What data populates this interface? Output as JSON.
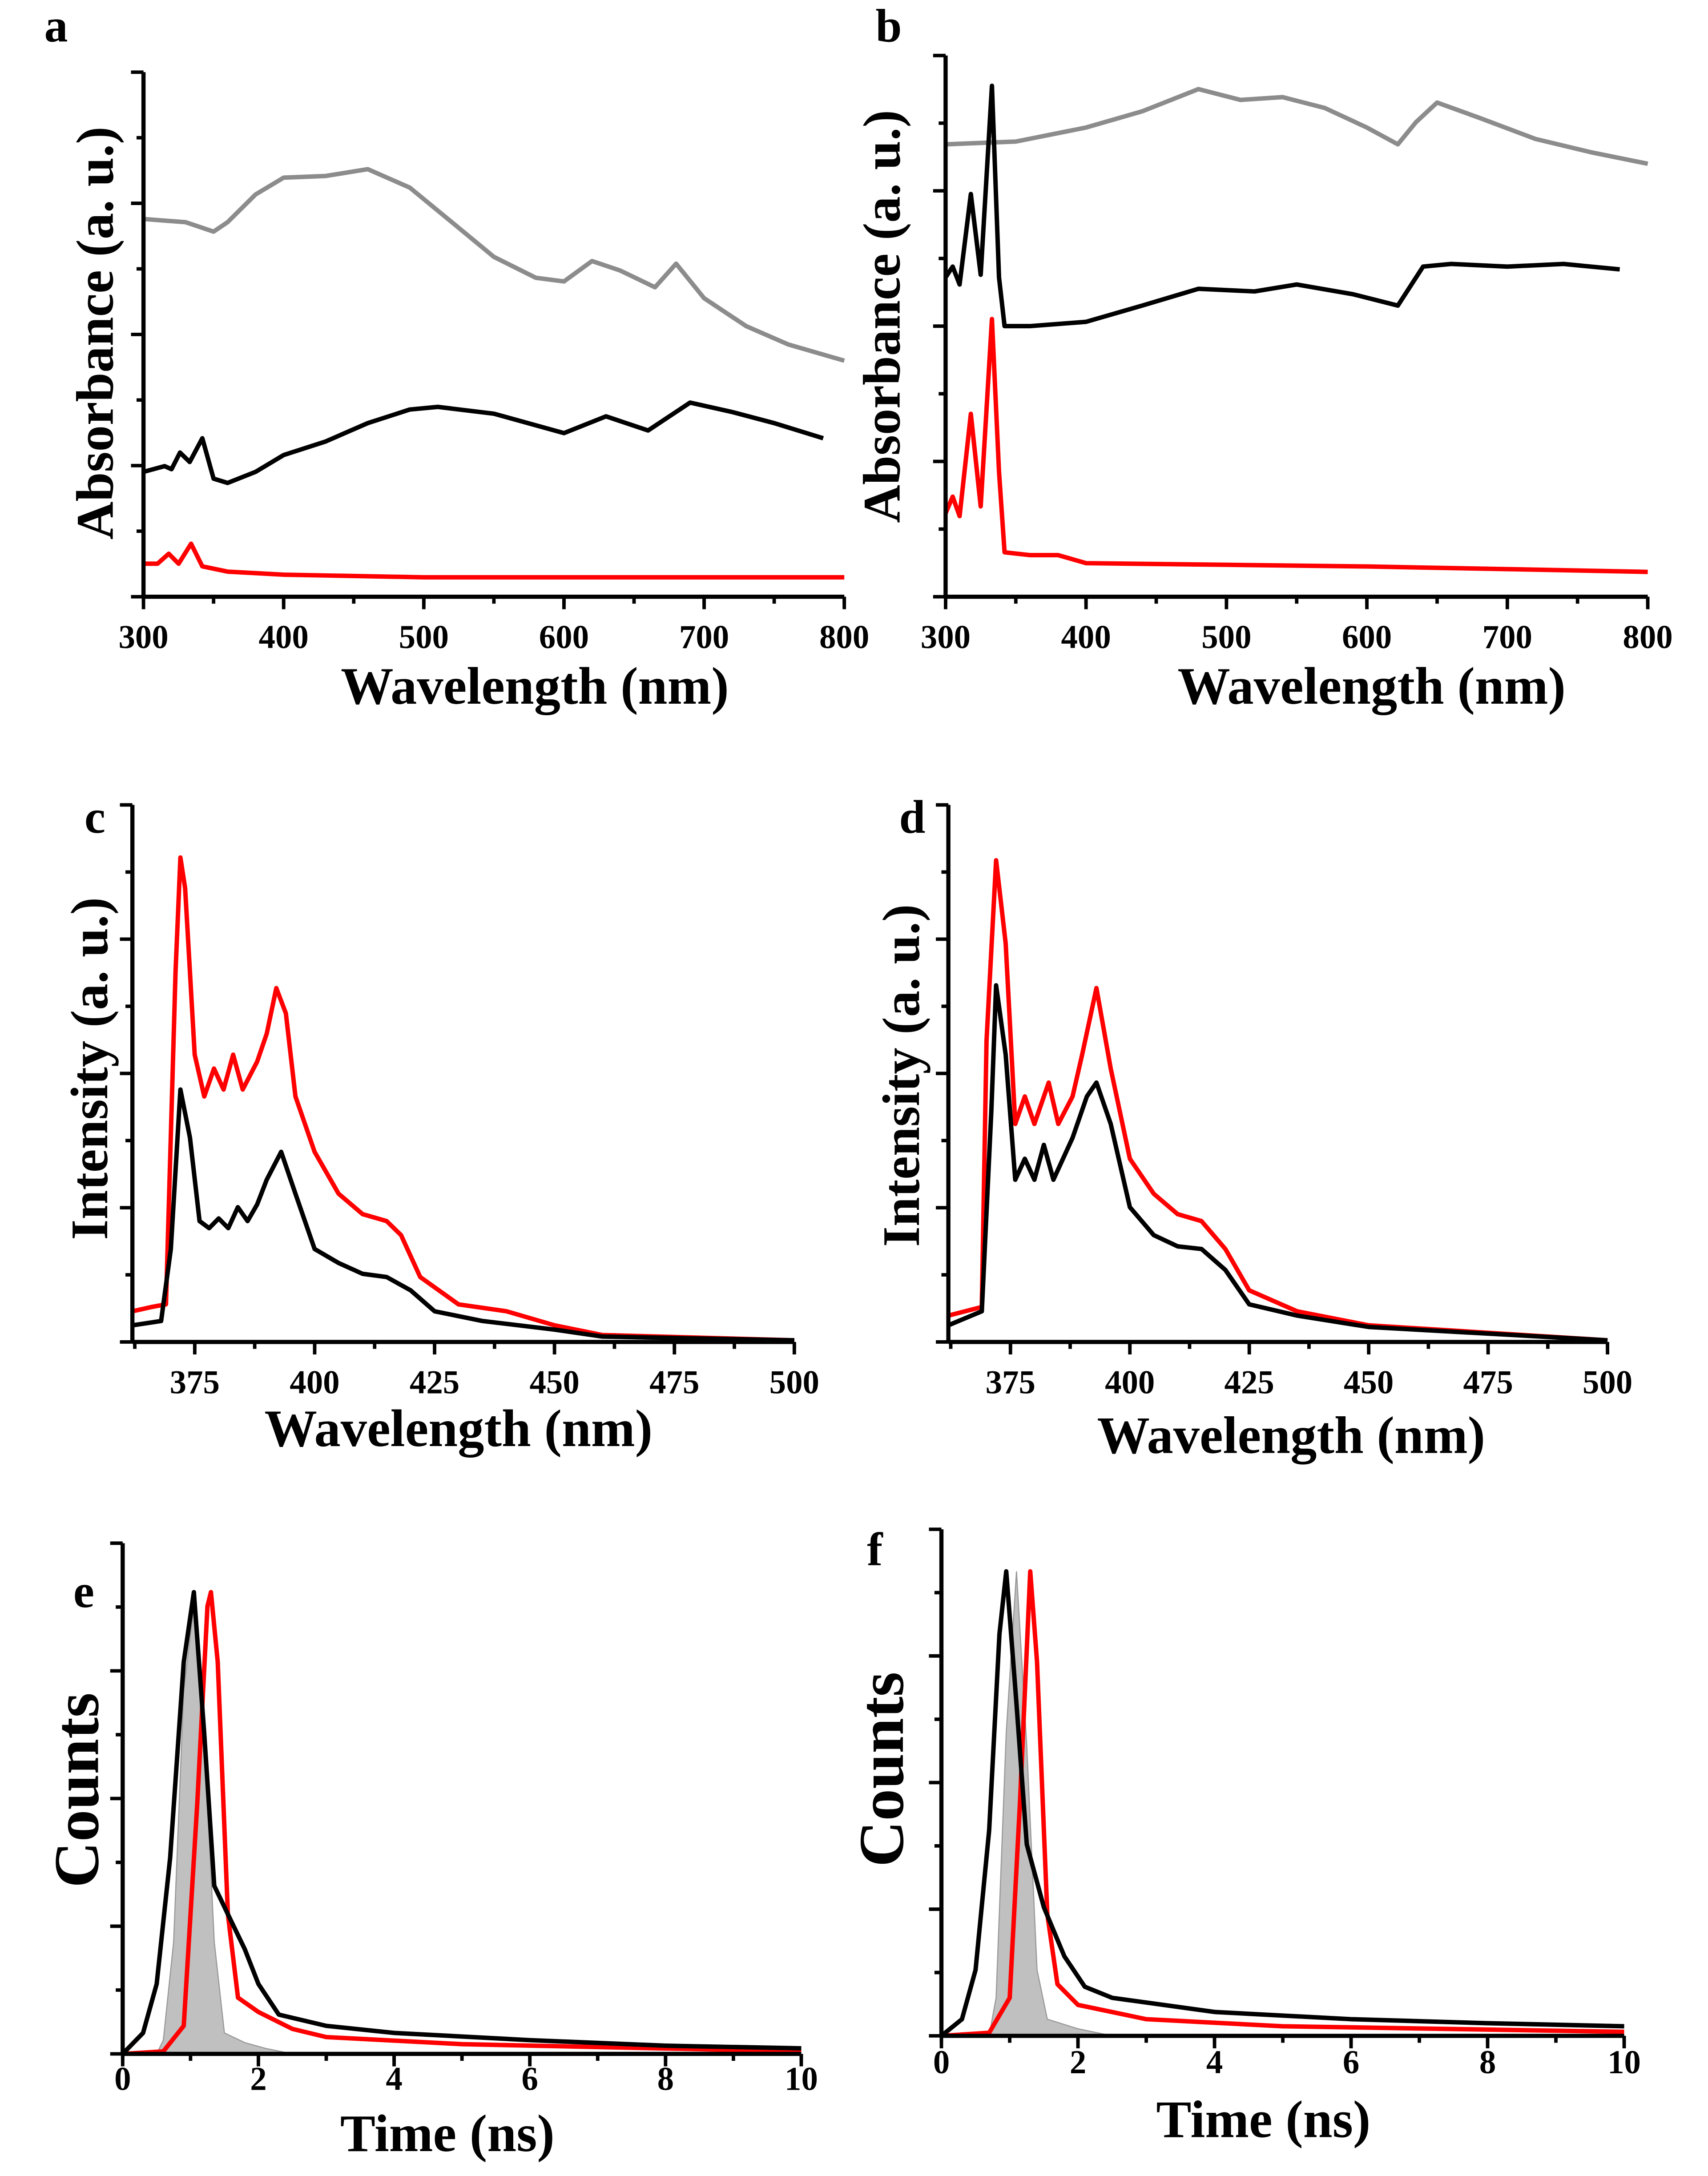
{
  "chart_data": [
    {
      "panel": "a",
      "type": "line",
      "xlabel": "Wavelength (nm)",
      "ylabel": "Absorbance (a. u.)",
      "xlim": [
        300,
        800
      ],
      "ylim": [
        0,
        1
      ],
      "xticks": [
        300,
        400,
        500,
        600,
        700,
        800
      ],
      "xminor": 50,
      "series": [
        {
          "color": "#8c8c8c",
          "x": [
            300,
            330,
            350,
            360,
            380,
            400,
            430,
            460,
            490,
            520,
            550,
            580,
            600,
            620,
            640,
            665,
            680,
            700,
            730,
            760,
            800
          ],
          "y": [
            0.72,
            0.714,
            0.696,
            0.714,
            0.767,
            0.799,
            0.802,
            0.815,
            0.78,
            0.714,
            0.648,
            0.608,
            0.601,
            0.64,
            0.622,
            0.59,
            0.635,
            0.569,
            0.516,
            0.481,
            0.45
          ]
        },
        {
          "color": "#000000",
          "x": [
            300,
            315,
            320,
            326,
            333,
            342,
            350,
            360,
            380,
            400,
            430,
            460,
            490,
            510,
            550,
            600,
            630,
            660,
            690,
            720,
            750,
            785
          ],
          "y": [
            0.238,
            0.249,
            0.243,
            0.275,
            0.257,
            0.302,
            0.225,
            0.217,
            0.238,
            0.27,
            0.296,
            0.331,
            0.357,
            0.362,
            0.349,
            0.312,
            0.344,
            0.317,
            0.37,
            0.352,
            0.331,
            0.302
          ]
        },
        {
          "color": "#ff0000",
          "x": [
            300,
            310,
            318,
            325,
            334,
            342,
            360,
            400,
            500,
            800
          ],
          "y": [
            0.063,
            0.063,
            0.082,
            0.063,
            0.101,
            0.058,
            0.048,
            0.042,
            0.037,
            0.037
          ]
        }
      ]
    },
    {
      "panel": "b",
      "type": "line",
      "xlabel": "Wavelength (nm)",
      "ylabel": "Absorbance (a. u.)",
      "xlim": [
        300,
        800
      ],
      "ylim": [
        0,
        1
      ],
      "xticks": [
        300,
        400,
        500,
        600,
        700,
        800
      ],
      "xminor": 50,
      "series": [
        {
          "color": "#8c8c8c",
          "x": [
            300,
            350,
            400,
            440,
            480,
            510,
            540,
            570,
            600,
            622,
            635,
            650,
            680,
            720,
            760,
            800
          ],
          "y": [
            0.836,
            0.841,
            0.867,
            0.897,
            0.938,
            0.918,
            0.923,
            0.903,
            0.867,
            0.836,
            0.877,
            0.913,
            0.885,
            0.846,
            0.821,
            0.8
          ]
        },
        {
          "color": "#000000",
          "x": [
            300,
            305,
            310,
            318,
            325,
            333,
            338,
            342,
            360,
            400,
            440,
            480,
            520,
            550,
            590,
            622,
            640,
            660,
            700,
            740,
            780
          ],
          "y": [
            0.59,
            0.61,
            0.577,
            0.744,
            0.595,
            0.944,
            0.59,
            0.5,
            0.5,
            0.508,
            0.538,
            0.569,
            0.564,
            0.577,
            0.559,
            0.538,
            0.61,
            0.615,
            0.61,
            0.615,
            0.605
          ]
        },
        {
          "color": "#ff0000",
          "x": [
            300,
            305,
            310,
            318,
            325,
            333,
            338,
            342,
            360,
            380,
            400,
            500,
            600,
            700,
            800
          ],
          "y": [
            0.154,
            0.185,
            0.149,
            0.338,
            0.167,
            0.513,
            0.231,
            0.082,
            0.077,
            0.077,
            0.062,
            0.059,
            0.056,
            0.051,
            0.046
          ]
        }
      ]
    },
    {
      "panel": "c",
      "type": "line",
      "xlabel": "Wavelength (nm)",
      "ylabel": "Intensity (a. u.)",
      "xlim": [
        362,
        500
      ],
      "ylim": [
        0,
        1
      ],
      "xticks": [
        375,
        400,
        425,
        450,
        475,
        500
      ],
      "xminor": 12.5,
      "series": [
        {
          "color": "#ff0000",
          "x": [
            362,
            366,
            369,
            371,
            372,
            373,
            375,
            377,
            379,
            381,
            383,
            385,
            388,
            390,
            392,
            394,
            396,
            400,
            405,
            410,
            415,
            418,
            422,
            430,
            440,
            450,
            460,
            500
          ],
          "y": [
            0.057,
            0.065,
            0.07,
            0.69,
            0.902,
            0.845,
            0.535,
            0.457,
            0.509,
            0.47,
            0.535,
            0.47,
            0.522,
            0.574,
            0.659,
            0.612,
            0.457,
            0.354,
            0.276,
            0.238,
            0.225,
            0.199,
            0.121,
            0.07,
            0.057,
            0.031,
            0.013,
            0.003
          ]
        },
        {
          "color": "#000000",
          "x": [
            362,
            368,
            370,
            372,
            374,
            376,
            378,
            380,
            382,
            384,
            386,
            388,
            390,
            393,
            396,
            400,
            405,
            410,
            415,
            420,
            425,
            435,
            450,
            460,
            500
          ],
          "y": [
            0.031,
            0.039,
            0.173,
            0.47,
            0.38,
            0.225,
            0.212,
            0.23,
            0.212,
            0.251,
            0.225,
            0.256,
            0.302,
            0.354,
            0.276,
            0.173,
            0.147,
            0.127,
            0.121,
            0.096,
            0.057,
            0.039,
            0.023,
            0.01,
            0.003
          ]
        }
      ]
    },
    {
      "panel": "d",
      "type": "line",
      "xlabel": "Wavelength (nm)",
      "ylabel": "Intensity (a. u.)",
      "xlim": [
        362,
        500
      ],
      "ylim": [
        0,
        1
      ],
      "xticks": [
        375,
        400,
        425,
        450,
        475,
        500
      ],
      "xminor": 12.5,
      "series": [
        {
          "color": "#ff0000",
          "x": [
            362,
            369,
            370,
            372,
            374,
            376,
            378,
            380,
            383,
            385,
            388,
            390,
            393,
            396,
            400,
            405,
            410,
            415,
            420,
            425,
            435,
            450,
            500
          ],
          "y": [
            0.049,
            0.065,
            0.561,
            0.897,
            0.742,
            0.406,
            0.457,
            0.406,
            0.483,
            0.406,
            0.457,
            0.535,
            0.659,
            0.509,
            0.341,
            0.276,
            0.238,
            0.225,
            0.173,
            0.096,
            0.057,
            0.031,
            0.003
          ]
        },
        {
          "color": "#000000",
          "x": [
            362,
            369,
            371,
            372,
            374,
            376,
            378,
            380,
            382,
            384,
            388,
            391,
            393,
            396,
            400,
            405,
            410,
            415,
            420,
            425,
            435,
            450,
            500
          ],
          "y": [
            0.031,
            0.057,
            0.432,
            0.664,
            0.535,
            0.302,
            0.341,
            0.302,
            0.367,
            0.302,
            0.38,
            0.457,
            0.483,
            0.406,
            0.251,
            0.199,
            0.178,
            0.173,
            0.134,
            0.07,
            0.049,
            0.028,
            0.003
          ]
        }
      ]
    },
    {
      "panel": "e",
      "type": "line",
      "xlabel": "Time (ns)",
      "ylabel": "Counts",
      "xlim": [
        0,
        10
      ],
      "ylim": [
        0,
        1
      ],
      "xticks": [
        0,
        2,
        4,
        6,
        8,
        10
      ],
      "xminor": 1,
      "fill": {
        "color": "#c0c0c0",
        "x": [
          0.5,
          0.6,
          0.75,
          0.9,
          1.05,
          1.2,
          1.35,
          1.5,
          1.8,
          2.1,
          2.5
        ],
        "y": [
          0,
          0.027,
          0.219,
          0.712,
          0.877,
          0.63,
          0.219,
          0.041,
          0.022,
          0.011,
          0
        ]
      },
      "series": [
        {
          "color": "#ff0000",
          "x": [
            0,
            0.6,
            0.9,
            1.1,
            1.25,
            1.3,
            1.4,
            1.55,
            1.7,
            2,
            2.5,
            3,
            5,
            10
          ],
          "y": [
            0,
            0.005,
            0.055,
            0.493,
            0.877,
            0.904,
            0.767,
            0.274,
            0.11,
            0.082,
            0.049,
            0.033,
            0.019,
            0.005
          ]
        },
        {
          "color": "#000000",
          "x": [
            0,
            0.3,
            0.5,
            0.7,
            0.9,
            1.05,
            1.2,
            1.35,
            1.6,
            1.8,
            2.0,
            2.3,
            3,
            4,
            6,
            8,
            10
          ],
          "y": [
            0,
            0.041,
            0.137,
            0.384,
            0.767,
            0.904,
            0.63,
            0.329,
            0.26,
            0.205,
            0.137,
            0.077,
            0.055,
            0.041,
            0.027,
            0.016,
            0.011
          ]
        }
      ]
    },
    {
      "panel": "f",
      "type": "line",
      "xlabel": "Time (ns)",
      "ylabel": "Counts",
      "xlim": [
        0,
        10
      ],
      "ylim": [
        0,
        1
      ],
      "xticks": [
        0,
        2,
        4,
        6,
        8,
        10
      ],
      "xminor": 1,
      "fill": {
        "color": "#c0c0c0",
        "x": [
          0.7,
          0.8,
          0.95,
          1.1,
          1.25,
          1.4,
          1.55,
          2,
          2.5
        ],
        "y": [
          0,
          0.075,
          0.599,
          0.917,
          0.572,
          0.13,
          0.033,
          0.014,
          0
        ]
      },
      "series": [
        {
          "color": "#ff0000",
          "x": [
            0,
            0.7,
            1.0,
            1.15,
            1.3,
            1.4,
            1.55,
            1.7,
            2,
            3,
            5,
            10
          ],
          "y": [
            0,
            0.006,
            0.075,
            0.461,
            0.917,
            0.738,
            0.24,
            0.102,
            0.061,
            0.033,
            0.019,
            0.008
          ]
        },
        {
          "color": "#000000",
          "x": [
            0,
            0.3,
            0.5,
            0.7,
            0.85,
            0.95,
            1.1,
            1.25,
            1.5,
            1.8,
            2.1,
            2.5,
            4,
            6,
            8,
            10
          ],
          "y": [
            0,
            0.033,
            0.13,
            0.406,
            0.793,
            0.917,
            0.655,
            0.378,
            0.254,
            0.157,
            0.097,
            0.075,
            0.047,
            0.033,
            0.025,
            0.019
          ]
        }
      ]
    }
  ]
}
